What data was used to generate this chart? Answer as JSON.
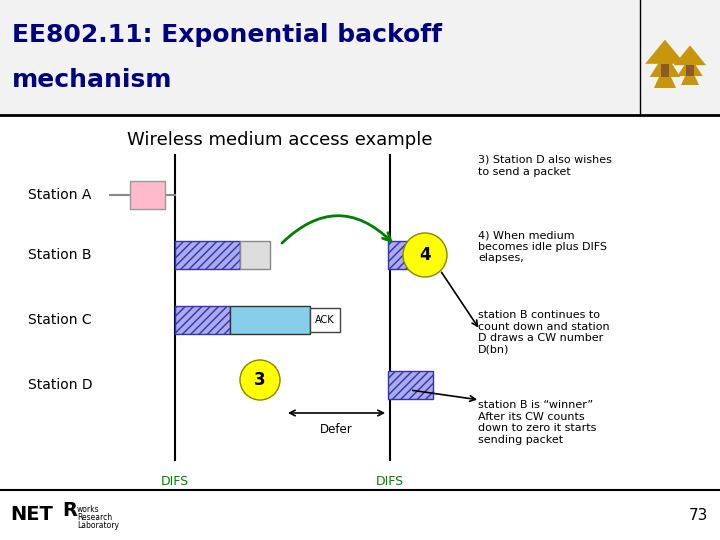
{
  "title_line1": "EE802.11: Exponential backoff",
  "title_line2": "mechanism",
  "subtitle": "Wireless medium access example",
  "bg_color": "#ffffff",
  "header_bg": "#f2f2f2",
  "title_color": "#000080",
  "title_fontsize": 18,
  "subtitle_fontsize": 13,
  "station_labels": [
    "Station A",
    "Station B",
    "Station C",
    "Station D"
  ],
  "green_color": "#008000",
  "hatch_facecolor": "#aaaaee",
  "hatch_edgecolor": "#3333aa",
  "light_blue": "#87CEEB",
  "pink_color": "#ffbbbb",
  "gray_color": "#cccccc",
  "yellow_color": "#ffff00",
  "notes": [
    "3) Station D also wishes\nto send a packet",
    "4) When medium\nbecomes idle plus DIFS\nelapses,",
    "station B continues to\ncount down and station\nD draws a CW number\nD(bn)",
    "station B is “winner”\nAfter its CW counts\ndown to zero it starts\nsending packet"
  ],
  "page_num": "73"
}
